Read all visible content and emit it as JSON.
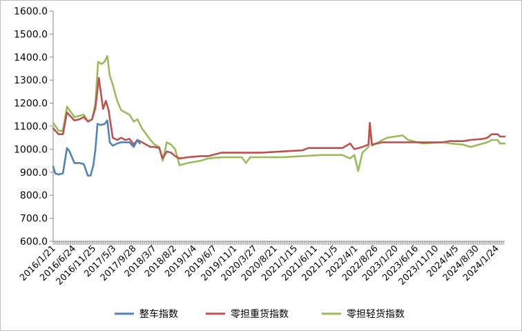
{
  "chart_data": {
    "type": "line",
    "title": "",
    "xlabel": "",
    "ylabel": "",
    "ylim": [
      600,
      1600
    ],
    "yticks": [
      600,
      700,
      800,
      900,
      1000,
      1100,
      1200,
      1300,
      1400,
      1500,
      1600
    ],
    "ytick_labels": [
      "600.0",
      "700.0",
      "800.0",
      "900.0",
      "1000.0",
      "1100.0",
      "1200.0",
      "1300.0",
      "1400.0",
      "1500.0",
      "1600.0"
    ],
    "xtick_labels": [
      "2016/1/21",
      "2016/6/24",
      "2016/11/25",
      "2017/5/3",
      "2017/9/28",
      "2018/3/7",
      "2018/8/2",
      "2019/1/4",
      "2019/6/7",
      "2019/11/1",
      "2020/3/27",
      "2020/8/21",
      "2021/1/15",
      "2021/6/11",
      "2021/11/5",
      "2022/4/1",
      "2022/8/26",
      "2023/1/20",
      "2023/6/16",
      "2023/11/10",
      "2024/4/5",
      "2024/8/30",
      "2024/1/24"
    ],
    "grid": false,
    "legend": "bottom",
    "colors": {
      "整车指数": "#4f81bd",
      "零担重货指数": "#c0504d",
      "零担轻货指数": "#9bbb59"
    },
    "series": [
      {
        "name": "整车指数",
        "points": [
          [
            "2016/1/21",
            925
          ],
          [
            "2016/2/5",
            895
          ],
          [
            "2016/3/1",
            890
          ],
          [
            "2016/4/1",
            895
          ],
          [
            "2016/5/1",
            1005
          ],
          [
            "2016/5/20",
            990
          ],
          [
            "2016/6/24",
            940
          ],
          [
            "2016/8/1",
            940
          ],
          [
            "2016/9/1",
            935
          ],
          [
            "2016/10/1",
            885
          ],
          [
            "2016/10/20",
            885
          ],
          [
            "2016/11/10",
            930
          ],
          [
            "2016/11/25",
            1000
          ],
          [
            "2016/12/10",
            1110
          ],
          [
            "2017/1/1",
            1105
          ],
          [
            "2017/2/1",
            1110
          ],
          [
            "2017/2/20",
            1125
          ],
          [
            "2017/3/10",
            1030
          ],
          [
            "2017/4/1",
            1015
          ],
          [
            "2017/5/3",
            1025
          ],
          [
            "2017/6/1",
            1030
          ],
          [
            "2017/7/1",
            1030
          ],
          [
            "2017/8/1",
            1030
          ],
          [
            "2017/9/1",
            1010
          ],
          [
            "2017/9/28",
            1040
          ],
          [
            "2017/10/15",
            1025
          ]
        ]
      },
      {
        "name": "零担重货指数",
        "points": [
          [
            "2016/1/21",
            1090
          ],
          [
            "2016/3/1",
            1065
          ],
          [
            "2016/4/1",
            1065
          ],
          [
            "2016/5/1",
            1160
          ],
          [
            "2016/6/24",
            1125
          ],
          [
            "2016/8/1",
            1130
          ],
          [
            "2016/9/1",
            1140
          ],
          [
            "2016/10/1",
            1120
          ],
          [
            "2016/11/1",
            1130
          ],
          [
            "2016/11/25",
            1180
          ],
          [
            "2016/12/20",
            1310
          ],
          [
            "2017/1/20",
            1175
          ],
          [
            "2017/2/10",
            1210
          ],
          [
            "2017/3/1",
            1170
          ],
          [
            "2017/4/1",
            1050
          ],
          [
            "2017/5/3",
            1040
          ],
          [
            "2017/6/1",
            1050
          ],
          [
            "2017/7/1",
            1040
          ],
          [
            "2017/8/1",
            1045
          ],
          [
            "2017/9/1",
            1020
          ],
          [
            "2017/9/28",
            1040
          ],
          [
            "2017/11/1",
            1030
          ],
          [
            "2018/1/1",
            1010
          ],
          [
            "2018/2/1",
            1010
          ],
          [
            "2018/3/7",
            1005
          ],
          [
            "2018/4/1",
            960
          ],
          [
            "2018/5/1",
            990
          ],
          [
            "2018/6/1",
            985
          ],
          [
            "2018/7/1",
            970
          ],
          [
            "2018/8/2",
            960
          ],
          [
            "2018/10/1",
            965
          ],
          [
            "2019/1/4",
            970
          ],
          [
            "2019/3/1",
            970
          ],
          [
            "2019/6/7",
            985
          ],
          [
            "2019/11/1",
            985
          ],
          [
            "2020/3/27",
            985
          ],
          [
            "2020/8/21",
            990
          ],
          [
            "2021/1/15",
            995
          ],
          [
            "2021/3/1",
            1005
          ],
          [
            "2021/6/11",
            1005
          ],
          [
            "2021/11/5",
            1005
          ],
          [
            "2022/1/1",
            1025
          ],
          [
            "2022/2/1",
            1000
          ],
          [
            "2022/4/1",
            1010
          ],
          [
            "2022/5/15",
            1020
          ],
          [
            "2022/5/25",
            1115
          ],
          [
            "2022/6/10",
            1020
          ],
          [
            "2022/8/26",
            1030
          ],
          [
            "2023/1/20",
            1030
          ],
          [
            "2023/6/16",
            1030
          ],
          [
            "2023/11/10",
            1030
          ],
          [
            "2024/1/1",
            1035
          ],
          [
            "2024/4/5",
            1035
          ],
          [
            "2024/6/1",
            1040
          ],
          [
            "2024/8/30",
            1045
          ],
          [
            "2024/10/1",
            1050
          ],
          [
            "2024/11/1",
            1065
          ],
          [
            "2024/12/15",
            1065
          ],
          [
            "2025/1/1",
            1055
          ],
          [
            "2025/2/5",
            1055
          ]
        ]
      },
      {
        "name": "零担轻货指数",
        "points": [
          [
            "2016/1/21",
            1115
          ],
          [
            "2016/3/1",
            1080
          ],
          [
            "2016/4/1",
            1080
          ],
          [
            "2016/5/1",
            1185
          ],
          [
            "2016/6/24",
            1140
          ],
          [
            "2016/8/1",
            1145
          ],
          [
            "2016/9/1",
            1150
          ],
          [
            "2016/10/1",
            1120
          ],
          [
            "2016/11/1",
            1130
          ],
          [
            "2016/11/25",
            1200
          ],
          [
            "2016/12/15",
            1380
          ],
          [
            "2017/1/10",
            1370
          ],
          [
            "2017/2/1",
            1380
          ],
          [
            "2017/2/20",
            1405
          ],
          [
            "2017/3/10",
            1320
          ],
          [
            "2017/4/1",
            1280
          ],
          [
            "2017/5/3",
            1210
          ],
          [
            "2017/6/1",
            1170
          ],
          [
            "2017/7/1",
            1160
          ],
          [
            "2017/8/1",
            1150
          ],
          [
            "2017/9/1",
            1120
          ],
          [
            "2017/9/28",
            1130
          ],
          [
            "2017/11/1",
            1090
          ],
          [
            "2018/1/1",
            1040
          ],
          [
            "2018/2/1",
            1020
          ],
          [
            "2018/3/7",
            1010
          ],
          [
            "2018/4/1",
            950
          ],
          [
            "2018/5/1",
            1030
          ],
          [
            "2018/6/1",
            1020
          ],
          [
            "2018/7/1",
            1000
          ],
          [
            "2018/8/2",
            930
          ],
          [
            "2018/10/1",
            940
          ],
          [
            "2019/1/4",
            950
          ],
          [
            "2019/3/1",
            960
          ],
          [
            "2019/6/7",
            965
          ],
          [
            "2019/11/1",
            965
          ],
          [
            "2019/12/1",
            940
          ],
          [
            "2020/1/1",
            965
          ],
          [
            "2020/3/27",
            965
          ],
          [
            "2020/8/21",
            965
          ],
          [
            "2021/1/15",
            970
          ],
          [
            "2021/6/11",
            975
          ],
          [
            "2021/11/5",
            975
          ],
          [
            "2022/1/1",
            960
          ],
          [
            "2022/2/1",
            975
          ],
          [
            "2022/3/1",
            905
          ],
          [
            "2022/4/1",
            985
          ],
          [
            "2022/5/15",
            1010
          ],
          [
            "2022/5/25",
            1100
          ],
          [
            "2022/6/10",
            1015
          ],
          [
            "2022/8/26",
            1040
          ],
          [
            "2022/10/1",
            1050
          ],
          [
            "2023/1/20",
            1060
          ],
          [
            "2023/3/1",
            1040
          ],
          [
            "2023/6/16",
            1025
          ],
          [
            "2023/11/10",
            1030
          ],
          [
            "2024/1/1",
            1025
          ],
          [
            "2024/4/5",
            1020
          ],
          [
            "2024/6/1",
            1010
          ],
          [
            "2024/8/30",
            1025
          ],
          [
            "2024/10/1",
            1030
          ],
          [
            "2024/11/1",
            1040
          ],
          [
            "2024/12/15",
            1040
          ],
          [
            "2025/1/1",
            1025
          ],
          [
            "2025/2/5",
            1025
          ]
        ]
      }
    ]
  }
}
